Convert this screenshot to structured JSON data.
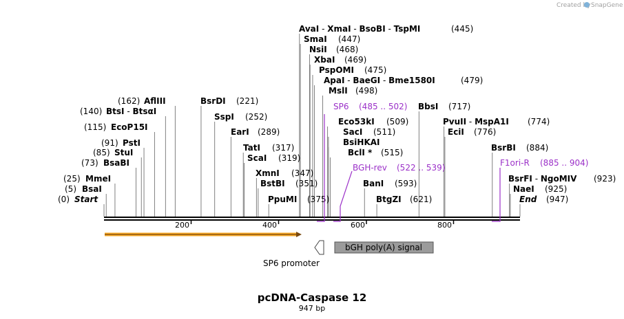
{
  "header": {
    "created_by": "Created by",
    "brand": "SnapGene"
  },
  "plasmid": {
    "name": "pcDNA-Caspase 12",
    "length_label": "947 bp",
    "length_bp": 947
  },
  "ruler": {
    "ticks": [
      "200",
      "400",
      "600",
      "800"
    ]
  },
  "sites": [
    {
      "names": [
        "AvaI",
        "XmaI",
        "BsoBI",
        "TspMI"
      ],
      "pos_label": "(445)",
      "bp": 445
    },
    {
      "names": [
        "SmaI"
      ],
      "pos_label": "(447)",
      "bp": 447
    },
    {
      "names": [
        "NsiI"
      ],
      "pos_label": "(468)",
      "bp": 468
    },
    {
      "names": [
        "XbaI"
      ],
      "pos_label": "(469)",
      "bp": 469
    },
    {
      "names": [
        "PspOMI"
      ],
      "pos_label": "(475)",
      "bp": 475
    },
    {
      "names": [
        "ApaI",
        "BaeGI",
        "Bme1580I"
      ],
      "pos_label": "(479)",
      "bp": 479
    },
    {
      "names": [
        "MslI"
      ],
      "pos_label": "(498)",
      "bp": 498
    },
    {
      "names": [
        "AflIII"
      ],
      "pos_label": "(162)",
      "bp": 162
    },
    {
      "names": [
        "BtsI",
        "BtsαI"
      ],
      "pos_label": "(140)",
      "bp": 140
    },
    {
      "names": [
        "EcoP15I"
      ],
      "pos_label": "(115)",
      "bp": 115
    },
    {
      "names": [
        "PstI"
      ],
      "pos_label": "(91)",
      "bp": 91
    },
    {
      "names": [
        "StuI"
      ],
      "pos_label": "(85)",
      "bp": 85
    },
    {
      "names": [
        "BsaBI"
      ],
      "pos_label": "(73)",
      "bp": 73
    },
    {
      "names": [
        "MmeI"
      ],
      "pos_label": "(25)",
      "bp": 25
    },
    {
      "names": [
        "BsaI"
      ],
      "pos_label": "(5)",
      "bp": 5
    },
    {
      "names": [
        "Start"
      ],
      "pos_label": "(0)",
      "bp": 0
    },
    {
      "names": [
        "BsrDI"
      ],
      "pos_label": "(221)",
      "bp": 221
    },
    {
      "names": [
        "SspI"
      ],
      "pos_label": "(252)",
      "bp": 252
    },
    {
      "names": [
        "EarI"
      ],
      "pos_label": "(289)",
      "bp": 289
    },
    {
      "names": [
        "TatI"
      ],
      "pos_label": "(317)",
      "bp": 317
    },
    {
      "names": [
        "ScaI"
      ],
      "pos_label": "(319)",
      "bp": 319
    },
    {
      "names": [
        "XmnI"
      ],
      "pos_label": "(347)",
      "bp": 347
    },
    {
      "names": [
        "BstBI"
      ],
      "pos_label": "(351)",
      "bp": 351
    },
    {
      "names": [
        "PpuMI"
      ],
      "pos_label": "(375)",
      "bp": 375
    },
    {
      "names": [
        "Eco53kI"
      ],
      "pos_label": "(509)",
      "bp": 509
    },
    {
      "names": [
        "SacI"
      ],
      "pos_label": "(511)",
      "bp": 511
    },
    {
      "names": [
        "BsiHKAI"
      ],
      "pos_label": "",
      "bp": 511
    },
    {
      "names": [
        "BclI *"
      ],
      "pos_label": "(515)",
      "bp": 515
    },
    {
      "names": [
        "BanI"
      ],
      "pos_label": "(593)",
      "bp": 593
    },
    {
      "names": [
        "BtgZI"
      ],
      "pos_label": "(621)",
      "bp": 621
    },
    {
      "names": [
        "BbsI"
      ],
      "pos_label": "(717)",
      "bp": 717
    },
    {
      "names": [
        "PvuII",
        "MspA1I"
      ],
      "pos_label": "(774)",
      "bp": 774
    },
    {
      "names": [
        "EciI"
      ],
      "pos_label": "(776)",
      "bp": 776
    },
    {
      "names": [
        "BsrBI"
      ],
      "pos_label": "(884)",
      "bp": 884
    },
    {
      "names": [
        "BsrFI",
        "NgoMIV"
      ],
      "pos_label": "(923)",
      "bp": 923
    },
    {
      "names": [
        "NaeI"
      ],
      "pos_label": "(925)",
      "bp": 925
    },
    {
      "names": [
        "End"
      ],
      "pos_label": "(947)",
      "bp": 947
    }
  ],
  "primers": [
    {
      "name": "SP6",
      "range_label": "(485 .. 502)",
      "start": 485,
      "end": 502
    },
    {
      "name": "BGH-rev",
      "range_label": "(522 .. 539)",
      "start": 522,
      "end": 539
    },
    {
      "name": "F1ori-R",
      "range_label": "(885 .. 904)",
      "start": 885,
      "end": 904
    }
  ],
  "features": [
    {
      "name": "SP6 promoter",
      "start": 460,
      "end": 478,
      "kind": "promoter"
    },
    {
      "name": "bGH poly(A) signal",
      "start": 526,
      "end": 750,
      "kind": "polyA"
    },
    {
      "name": "",
      "start": 0,
      "end": 449,
      "kind": "orf"
    }
  ],
  "colors": {
    "primer": "#9b30c8",
    "orf": "#f5a623",
    "polyA": "#9b9b9b",
    "backbone": "#000000"
  }
}
